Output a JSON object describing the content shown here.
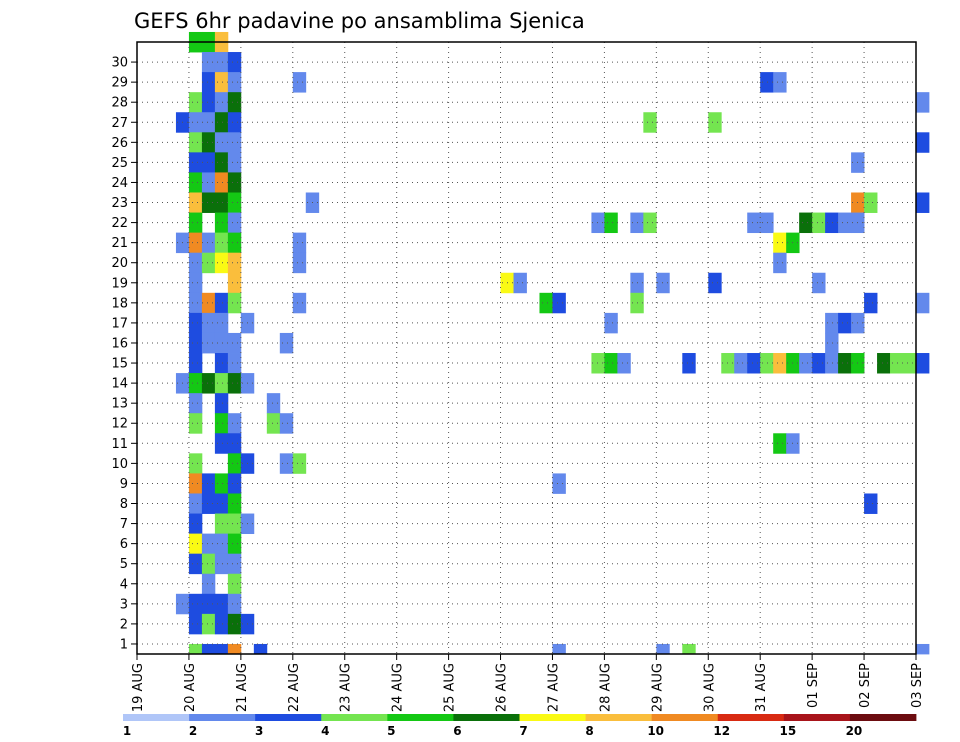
{
  "chart_data": {
    "type": "heatmap",
    "title": "GEFS 6hr padavine po ansamblima Sjenica",
    "xlabel": "",
    "ylabel": "",
    "x_tick_labels": [
      "19 AUG",
      "20 AUG",
      "21 AUG",
      "22 AUG",
      "23 AUG",
      "24 AUG",
      "25 AUG",
      "26 AUG",
      "27 AUG",
      "28 AUG",
      "29 AUG",
      "30 AUG",
      "31 AUG",
      "01 SEP",
      "02 SEP",
      "03 SEP"
    ],
    "y_tick_labels": [
      "1",
      "2",
      "3",
      "4",
      "5",
      "6",
      "7",
      "8",
      "9",
      "10",
      "11",
      "12",
      "13",
      "14",
      "15",
      "16",
      "17",
      "18",
      "19",
      "20",
      "21",
      "22",
      "23",
      "24",
      "25",
      "26",
      "27",
      "28",
      "29",
      "30"
    ],
    "x_unit": "6-hour step from 19 AUG 00Z",
    "y_unit": "ensemble member",
    "grid": true,
    "colorbar": {
      "position": "bottom",
      "bounds": [
        1,
        2,
        3,
        4,
        5,
        6,
        7,
        8,
        10,
        12,
        15,
        20
      ],
      "labels": [
        "1",
        "2",
        "3",
        "4",
        "5",
        "6",
        "7",
        "8",
        "10",
        "12",
        "15",
        "20"
      ],
      "colors": [
        "#b0c6f8",
        "#6389ec",
        "#1e4ce0",
        "#74e550",
        "#14c814",
        "#0a700a",
        "#fafa14",
        "#fabe3c",
        "#f08a22",
        "#d82a12",
        "#a8141a",
        "#6c0c10"
      ]
    },
    "cells": [
      [
        4,
        30,
        4
      ],
      [
        5,
        30,
        4
      ],
      [
        6,
        30,
        7
      ],
      [
        5,
        29,
        1
      ],
      [
        6,
        29,
        1
      ],
      [
        7,
        29,
        2
      ],
      [
        5,
        28,
        2
      ],
      [
        6,
        28,
        7
      ],
      [
        7,
        28,
        1
      ],
      [
        12,
        28,
        1
      ],
      [
        48,
        28,
        2
      ],
      [
        49,
        28,
        1
      ],
      [
        4,
        27,
        3
      ],
      [
        5,
        27,
        2
      ],
      [
        6,
        27,
        1
      ],
      [
        7,
        27,
        5
      ],
      [
        60,
        27,
        1
      ],
      [
        3,
        26,
        2
      ],
      [
        4,
        26,
        1
      ],
      [
        5,
        26,
        1
      ],
      [
        6,
        26,
        5
      ],
      [
        7,
        26,
        2
      ],
      [
        39,
        26,
        3
      ],
      [
        44,
        26,
        3
      ],
      [
        4,
        25,
        3
      ],
      [
        5,
        25,
        5
      ],
      [
        6,
        25,
        1
      ],
      [
        7,
        25,
        1
      ],
      [
        60,
        25,
        2
      ],
      [
        4,
        24,
        2
      ],
      [
        5,
        24,
        2
      ],
      [
        6,
        24,
        5
      ],
      [
        7,
        24,
        1
      ],
      [
        55,
        24,
        1
      ],
      [
        4,
        23,
        4
      ],
      [
        5,
        23,
        1
      ],
      [
        6,
        23,
        8
      ],
      [
        7,
        23,
        5
      ],
      [
        4,
        22,
        7
      ],
      [
        5,
        22,
        5
      ],
      [
        6,
        22,
        5
      ],
      [
        7,
        22,
        4
      ],
      [
        13,
        22,
        1
      ],
      [
        55,
        22,
        8
      ],
      [
        56,
        22,
        3
      ],
      [
        60,
        22,
        2
      ],
      [
        4,
        21,
        4
      ],
      [
        6,
        21,
        4
      ],
      [
        7,
        21,
        1
      ],
      [
        35,
        21,
        1
      ],
      [
        36,
        21,
        4
      ],
      [
        38,
        21,
        1
      ],
      [
        39,
        21,
        3
      ],
      [
        47,
        21,
        1
      ],
      [
        48,
        21,
        1
      ],
      [
        51,
        21,
        5
      ],
      [
        52,
        21,
        3
      ],
      [
        53,
        21,
        2
      ],
      [
        54,
        21,
        1
      ],
      [
        55,
        21,
        1
      ],
      [
        3,
        20,
        1
      ],
      [
        4,
        20,
        8
      ],
      [
        5,
        20,
        1
      ],
      [
        6,
        20,
        3
      ],
      [
        7,
        20,
        4
      ],
      [
        12,
        20,
        1
      ],
      [
        49,
        20,
        6
      ],
      [
        50,
        20,
        4
      ],
      [
        4,
        19,
        1
      ],
      [
        5,
        19,
        3
      ],
      [
        6,
        19,
        6
      ],
      [
        7,
        19,
        7
      ],
      [
        12,
        19,
        1
      ],
      [
        49,
        19,
        1
      ],
      [
        4,
        18,
        1
      ],
      [
        7,
        18,
        7
      ],
      [
        28,
        18,
        6
      ],
      [
        29,
        18,
        1
      ],
      [
        38,
        18,
        1
      ],
      [
        40,
        18,
        1
      ],
      [
        44,
        18,
        2
      ],
      [
        52,
        18,
        1
      ],
      [
        4,
        17,
        1
      ],
      [
        5,
        17,
        8
      ],
      [
        6,
        17,
        2
      ],
      [
        7,
        17,
        3
      ],
      [
        12,
        17,
        1
      ],
      [
        31,
        17,
        4
      ],
      [
        32,
        17,
        2
      ],
      [
        38,
        17,
        3
      ],
      [
        56,
        17,
        2
      ],
      [
        60,
        17,
        1
      ],
      [
        4,
        16,
        2
      ],
      [
        5,
        16,
        1
      ],
      [
        6,
        16,
        1
      ],
      [
        8,
        16,
        1
      ],
      [
        36,
        16,
        1
      ],
      [
        53,
        16,
        1
      ],
      [
        54,
        16,
        2
      ],
      [
        55,
        16,
        1
      ],
      [
        4,
        15,
        2
      ],
      [
        5,
        15,
        1
      ],
      [
        6,
        15,
        1
      ],
      [
        7,
        15,
        1
      ],
      [
        11,
        15,
        1
      ],
      [
        53,
        15,
        1
      ],
      [
        4,
        14,
        2
      ],
      [
        6,
        14,
        2
      ],
      [
        7,
        14,
        1
      ],
      [
        35,
        14,
        3
      ],
      [
        36,
        14,
        4
      ],
      [
        37,
        14,
        1
      ],
      [
        42,
        14,
        2
      ],
      [
        45,
        14,
        3
      ],
      [
        46,
        14,
        1
      ],
      [
        47,
        14,
        2
      ],
      [
        48,
        14,
        3
      ],
      [
        49,
        14,
        7
      ],
      [
        50,
        14,
        4
      ],
      [
        51,
        14,
        1
      ],
      [
        52,
        14,
        2
      ],
      [
        53,
        14,
        1
      ],
      [
        54,
        14,
        5
      ],
      [
        55,
        14,
        4
      ],
      [
        57,
        14,
        5
      ],
      [
        58,
        14,
        3
      ],
      [
        59,
        14,
        3
      ],
      [
        60,
        14,
        2
      ],
      [
        3,
        13,
        1
      ],
      [
        4,
        13,
        4
      ],
      [
        5,
        13,
        5
      ],
      [
        6,
        13,
        3
      ],
      [
        7,
        13,
        5
      ],
      [
        8,
        13,
        1
      ],
      [
        4,
        12,
        1
      ],
      [
        6,
        12,
        2
      ],
      [
        10,
        12,
        1
      ],
      [
        4,
        11,
        3
      ],
      [
        6,
        11,
        4
      ],
      [
        7,
        11,
        1
      ],
      [
        10,
        11,
        3
      ],
      [
        11,
        11,
        1
      ],
      [
        6,
        10,
        2
      ],
      [
        7,
        10,
        2
      ],
      [
        49,
        10,
        4
      ],
      [
        50,
        10,
        1
      ],
      [
        4,
        9,
        3
      ],
      [
        7,
        9,
        4
      ],
      [
        8,
        9,
        2
      ],
      [
        11,
        9,
        1
      ],
      [
        12,
        9,
        3
      ],
      [
        4,
        8,
        8
      ],
      [
        5,
        8,
        2
      ],
      [
        6,
        8,
        4
      ],
      [
        7,
        8,
        2
      ],
      [
        32,
        8,
        1
      ],
      [
        4,
        7,
        1
      ],
      [
        5,
        7,
        2
      ],
      [
        6,
        7,
        2
      ],
      [
        7,
        7,
        4
      ],
      [
        56,
        7,
        2
      ],
      [
        4,
        6,
        2
      ],
      [
        6,
        6,
        3
      ],
      [
        7,
        6,
        3
      ],
      [
        8,
        6,
        1
      ],
      [
        4,
        5,
        6
      ],
      [
        5,
        5,
        1
      ],
      [
        6,
        5,
        1
      ],
      [
        7,
        5,
        4
      ],
      [
        4,
        4,
        2
      ],
      [
        5,
        4,
        3
      ],
      [
        6,
        4,
        1
      ],
      [
        7,
        4,
        1
      ],
      [
        5,
        3,
        1
      ],
      [
        7,
        3,
        3
      ],
      [
        3,
        2,
        1
      ],
      [
        4,
        2,
        2
      ],
      [
        5,
        2,
        2
      ],
      [
        6,
        2,
        2
      ],
      [
        7,
        2,
        1
      ],
      [
        4,
        1,
        2
      ],
      [
        5,
        1,
        3
      ],
      [
        6,
        1,
        2
      ],
      [
        7,
        1,
        5
      ],
      [
        8,
        1,
        2
      ],
      [
        4,
        0,
        3
      ],
      [
        5,
        0,
        2
      ],
      [
        6,
        0,
        2
      ],
      [
        7,
        0,
        8
      ],
      [
        9,
        0,
        2
      ],
      [
        32,
        0,
        1
      ],
      [
        40,
        0,
        1
      ],
      [
        42,
        0,
        3
      ],
      [
        60,
        0,
        1
      ]
    ]
  }
}
